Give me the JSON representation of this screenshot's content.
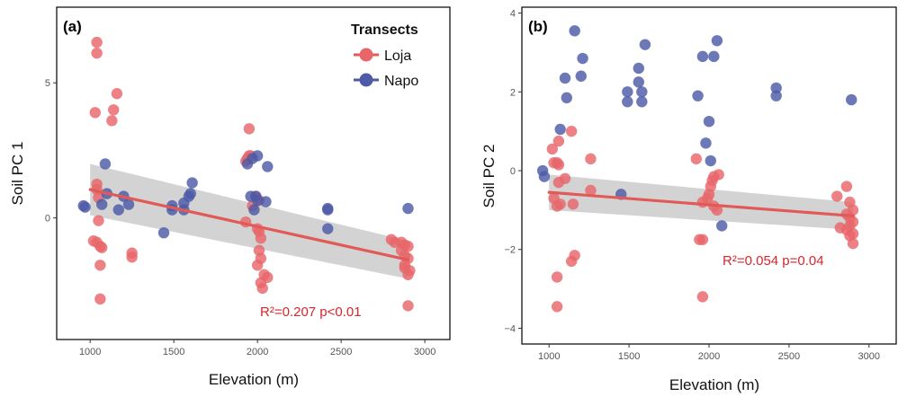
{
  "colors": {
    "loja": "#e8666a",
    "napo": "#4d5aa6",
    "fit": "#e15a57",
    "ribbon": "#c4c4c4",
    "annotation": "#d7262c"
  },
  "legend": {
    "title": "Transects",
    "entries": [
      {
        "label": "Loja",
        "color": "#e8666a"
      },
      {
        "label": "Napo",
        "color": "#4d5aa6"
      }
    ]
  },
  "chart_data": [
    {
      "type": "scatter",
      "panel_label": "(a)",
      "xlabel": "Elevation (m)",
      "ylabel": "Soil PC 1",
      "xlim": [
        800,
        3150
      ],
      "ylim": [
        -4.5,
        7.8
      ],
      "xticks": [
        1000,
        1500,
        2000,
        2500,
        3000
      ],
      "yticks": [
        -5,
        0,
        5
      ],
      "annotation": "R²=0.207 p<0.01",
      "fit": {
        "x": [
          1000,
          2900
        ],
        "y": [
          1.05,
          -1.55
        ],
        "ci_lower": [
          0.1,
          -2.25
        ],
        "ci_upper": [
          2.0,
          -0.85
        ]
      },
      "series": [
        {
          "name": "Loja",
          "points": [
            [
              1040,
              6.5
            ],
            [
              1040,
              6.1
            ],
            [
              1030,
              3.9
            ],
            [
              1160,
              4.6
            ],
            [
              1140,
              4.0
            ],
            [
              1130,
              3.6
            ],
            [
              1040,
              1.25
            ],
            [
              1040,
              1.05
            ],
            [
              1050,
              0.75
            ],
            [
              1050,
              -0.1
            ],
            [
              1020,
              -0.85
            ],
            [
              1040,
              -0.9
            ],
            [
              1060,
              -1.05
            ],
            [
              1070,
              -1.1
            ],
            [
              1060,
              -1.75
            ],
            [
              1060,
              -3.0
            ],
            [
              1250,
              -1.3
            ],
            [
              1250,
              -1.45
            ],
            [
              1950,
              3.3
            ],
            [
              1950,
              2.3
            ],
            [
              1960,
              2.3
            ],
            [
              1940,
              2.2
            ],
            [
              1930,
              2.1
            ],
            [
              1990,
              0.8
            ],
            [
              2010,
              0.65
            ],
            [
              1930,
              -0.15
            ],
            [
              1970,
              0.45
            ],
            [
              2000,
              -0.4
            ],
            [
              2010,
              -0.5
            ],
            [
              2020,
              -0.75
            ],
            [
              2010,
              -1.2
            ],
            [
              2020,
              -1.5
            ],
            [
              2000,
              -1.75
            ],
            [
              2040,
              -2.1
            ],
            [
              2060,
              -2.2
            ],
            [
              2020,
              -2.4
            ],
            [
              2030,
              -2.6
            ],
            [
              2800,
              -0.8
            ],
            [
              2820,
              -0.9
            ],
            [
              2860,
              -0.9
            ],
            [
              2880,
              -1.0
            ],
            [
              2900,
              -1.05
            ],
            [
              2860,
              -1.2
            ],
            [
              2880,
              -1.4
            ],
            [
              2900,
              -1.5
            ],
            [
              2880,
              -1.75
            ],
            [
              2880,
              -1.85
            ],
            [
              2910,
              -1.95
            ],
            [
              2900,
              -2.1
            ],
            [
              2900,
              -3.25
            ]
          ]
        },
        {
          "name": "Napo",
          "points": [
            [
              960,
              0.45
            ],
            [
              970,
              0.4
            ],
            [
              1090,
              2.0
            ],
            [
              1100,
              0.9
            ],
            [
              1070,
              0.5
            ],
            [
              1170,
              0.3
            ],
            [
              1200,
              0.8
            ],
            [
              1230,
              0.5
            ],
            [
              1440,
              -0.55
            ],
            [
              1490,
              0.45
            ],
            [
              1490,
              0.3
            ],
            [
              1560,
              0.3
            ],
            [
              1560,
              0.55
            ],
            [
              1590,
              0.8
            ],
            [
              1600,
              0.9
            ],
            [
              1610,
              1.3
            ],
            [
              1940,
              2.0
            ],
            [
              1970,
              2.2
            ],
            [
              2000,
              2.3
            ],
            [
              2060,
              1.9
            ],
            [
              1960,
              0.8
            ],
            [
              1990,
              0.8
            ],
            [
              2000,
              0.65
            ],
            [
              2050,
              0.6
            ],
            [
              1980,
              0.3
            ],
            [
              2420,
              0.35
            ],
            [
              2420,
              0.3
            ],
            [
              2420,
              -0.4
            ],
            [
              2900,
              0.35
            ]
          ]
        }
      ]
    },
    {
      "type": "scatter",
      "panel_label": "(b)",
      "xlabel": "Elevation (m)",
      "ylabel": "Soil PC 2",
      "xlim": [
        830,
        3170
      ],
      "ylim": [
        -4.4,
        4.15
      ],
      "xticks": [
        1000,
        1500,
        2000,
        2500,
        3000
      ],
      "yticks": [
        -4,
        -2,
        0,
        2,
        4
      ],
      "annotation": "R²=0.054 p=0.04",
      "fit": {
        "x": [
          1000,
          2900
        ],
        "y": [
          -0.55,
          -1.15
        ],
        "ci_lower": [
          -1.0,
          -1.5
        ],
        "ci_upper": [
          -0.1,
          -0.8
        ]
      },
      "series": [
        {
          "name": "Loja",
          "points": [
            [
              1020,
              0.55
            ],
            [
              1030,
              0.2
            ],
            [
              1050,
              0.2
            ],
            [
              1060,
              0.15
            ],
            [
              1060,
              -0.3
            ],
            [
              1030,
              -0.7
            ],
            [
              1050,
              -0.9
            ],
            [
              1070,
              -0.85
            ],
            [
              1100,
              -0.2
            ],
            [
              1150,
              -0.85
            ],
            [
              1060,
              0.75
            ],
            [
              1140,
              1.0
            ],
            [
              1260,
              0.3
            ],
            [
              1260,
              -0.5
            ],
            [
              1160,
              -2.15
            ],
            [
              1140,
              -2.3
            ],
            [
              1050,
              -2.7
            ],
            [
              1050,
              -3.45
            ],
            [
              1920,
              0.3
            ],
            [
              1960,
              -0.8
            ],
            [
              1990,
              -0.7
            ],
            [
              2000,
              -0.6
            ],
            [
              2010,
              -0.4
            ],
            [
              2020,
              -0.25
            ],
            [
              2030,
              -0.15
            ],
            [
              2060,
              -0.1
            ],
            [
              2030,
              -0.9
            ],
            [
              2050,
              -1.0
            ],
            [
              1940,
              -1.75
            ],
            [
              1960,
              -1.75
            ],
            [
              1960,
              -3.2
            ],
            [
              2800,
              -0.65
            ],
            [
              2860,
              -0.4
            ],
            [
              2880,
              -0.8
            ],
            [
              2900,
              -1.0
            ],
            [
              2860,
              -1.1
            ],
            [
              2880,
              -1.2
            ],
            [
              2900,
              -1.3
            ],
            [
              2880,
              -1.4
            ],
            [
              2820,
              -1.45
            ],
            [
              2860,
              -1.5
            ],
            [
              2900,
              -1.6
            ],
            [
              2880,
              -1.65
            ],
            [
              2900,
              -1.85
            ]
          ]
        },
        {
          "name": "Napo",
          "points": [
            [
              960,
              0.0
            ],
            [
              970,
              -0.15
            ],
            [
              1070,
              1.05
            ],
            [
              1100,
              2.35
            ],
            [
              1110,
              1.85
            ],
            [
              1160,
              3.55
            ],
            [
              1200,
              2.4
            ],
            [
              1210,
              2.85
            ],
            [
              1490,
              2.0
            ],
            [
              1490,
              1.75
            ],
            [
              1560,
              2.6
            ],
            [
              1560,
              2.25
            ],
            [
              1580,
              2.0
            ],
            [
              1580,
              1.75
            ],
            [
              1600,
              3.2
            ],
            [
              1450,
              -0.6
            ],
            [
              1930,
              1.9
            ],
            [
              1960,
              2.9
            ],
            [
              1980,
              0.7
            ],
            [
              2000,
              1.25
            ],
            [
              2010,
              0.25
            ],
            [
              2030,
              2.9
            ],
            [
              2050,
              3.3
            ],
            [
              2080,
              -1.4
            ],
            [
              2420,
              2.1
            ],
            [
              2420,
              1.9
            ],
            [
              2890,
              1.8
            ]
          ]
        }
      ]
    }
  ]
}
